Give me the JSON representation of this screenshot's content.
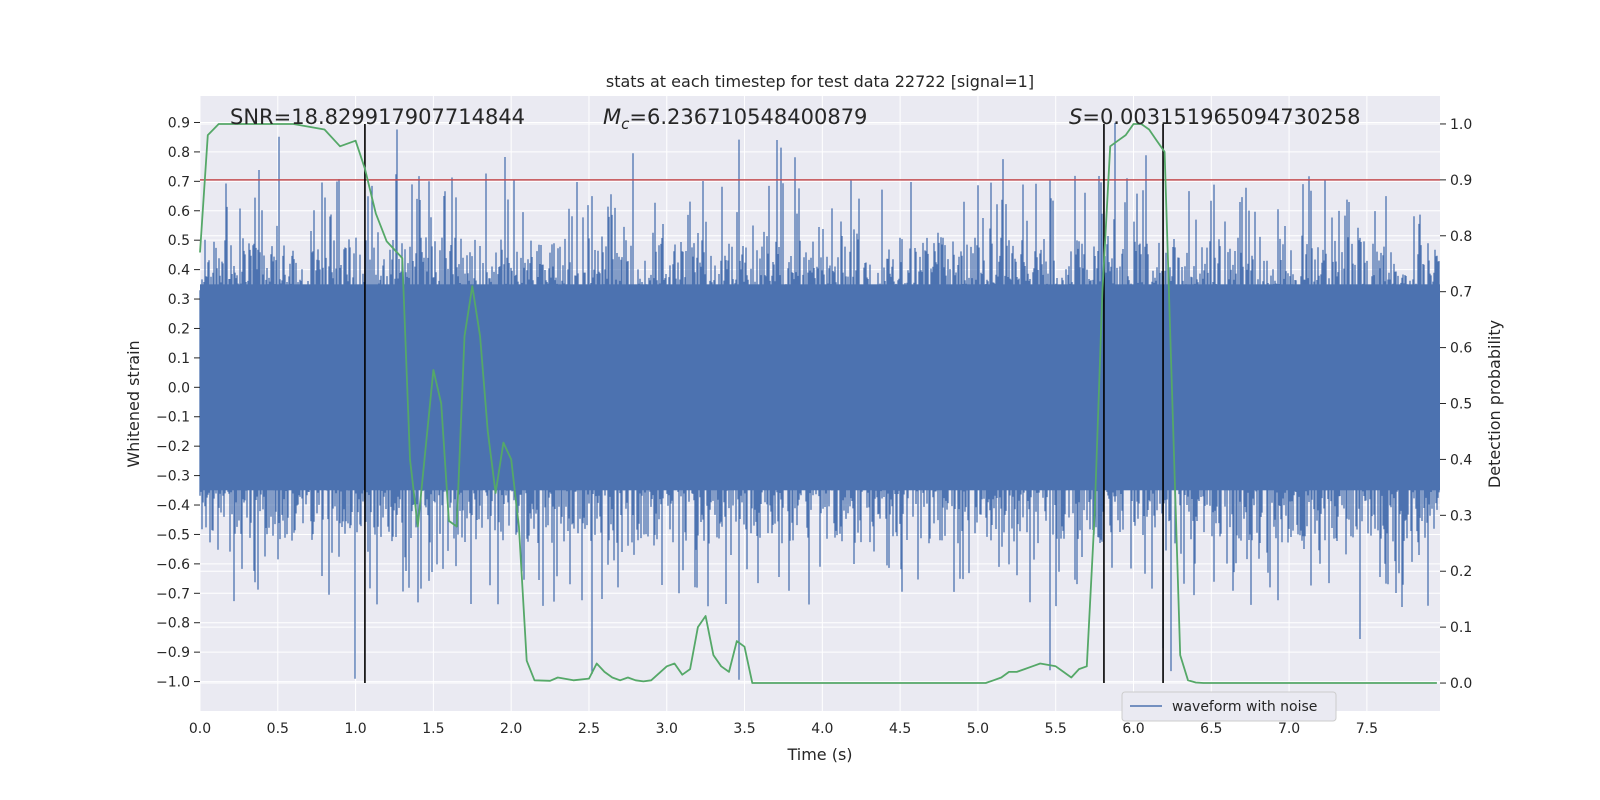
{
  "chart_data": {
    "type": "line",
    "title": "stats at each timestep for test data 22722 [signal=1]",
    "xlabel": "Time (s)",
    "ylabel": "Whitened strain",
    "ylabel_right": "Detection probability",
    "xlim": [
      0,
      7.97
    ],
    "ylim": [
      -1.1,
      0.99
    ],
    "ylim_right": [
      -0.05,
      1.05
    ],
    "x_ticks": [
      "0.0",
      "0.5",
      "1.0",
      "1.5",
      "2.0",
      "2.5",
      "3.0",
      "3.5",
      "4.0",
      "4.5",
      "5.0",
      "5.5",
      "6.0",
      "6.5",
      "7.0",
      "7.5"
    ],
    "y_ticks": [
      "0.9",
      "0.8",
      "0.7",
      "0.6",
      "0.5",
      "0.4",
      "0.3",
      "0.2",
      "0.1",
      "0.0",
      "−0.1",
      "−0.2",
      "−0.3",
      "−0.4",
      "−0.5",
      "−0.6",
      "−0.7",
      "−0.8",
      "−0.9",
      "−1.0"
    ],
    "y_ticks_right": [
      "1.0",
      "0.9",
      "0.8",
      "0.7",
      "0.6",
      "0.5",
      "0.4",
      "0.3",
      "0.2",
      "0.1",
      "0.0"
    ],
    "annotations": {
      "snr": "SNR=18.829917907714844",
      "mc_symbol": "M",
      "mc_sub": "c",
      "mc_value": "=6.236710548400879",
      "s_symbol": "S",
      "s_value": "=0.003151965094730258"
    },
    "legend": {
      "label": "waveform with noise",
      "location": "lower-right"
    },
    "colors": {
      "waveform": "#4c72b0",
      "probability": "#55a868",
      "threshold": "#c44e52",
      "markers": "#000000",
      "plot_bg": "#eaeaf2",
      "grid": "#ffffff"
    },
    "threshold_probability": 0.9,
    "vertical_markers_s": [
      1.06,
      5.81,
      6.19
    ],
    "waveform_envelope": {
      "core_halfwidth": 0.35,
      "typical_peak": 0.5,
      "max_peak": 0.9,
      "min_trough": -1.0
    },
    "series": [
      {
        "name": "detection probability",
        "axis": "right",
        "x": [
          0.0,
          0.05,
          0.12,
          0.2,
          0.4,
          0.6,
          0.8,
          0.9,
          1.0,
          1.06,
          1.13,
          1.2,
          1.3,
          1.35,
          1.4,
          1.45,
          1.5,
          1.55,
          1.6,
          1.65,
          1.7,
          1.75,
          1.8,
          1.85,
          1.9,
          1.95,
          2.0,
          2.05,
          2.1,
          2.15,
          2.25,
          2.3,
          2.4,
          2.5,
          2.55,
          2.6,
          2.65,
          2.7,
          2.75,
          2.8,
          2.85,
          2.9,
          3.0,
          3.05,
          3.1,
          3.15,
          3.2,
          3.25,
          3.3,
          3.35,
          3.4,
          3.45,
          3.5,
          3.55,
          3.6,
          3.65,
          3.7,
          3.75,
          3.8,
          3.85,
          3.9,
          4.0,
          4.1,
          4.2,
          4.4,
          4.5,
          4.6,
          4.7,
          4.8,
          4.9,
          5.0,
          5.05,
          5.1,
          5.15,
          5.2,
          5.25,
          5.3,
          5.35,
          5.4,
          5.5,
          5.55,
          5.6,
          5.65,
          5.7,
          5.75,
          5.8,
          5.85,
          5.9,
          5.95,
          6.0,
          6.05,
          6.1,
          6.15,
          6.2,
          6.25,
          6.3,
          6.35,
          6.4,
          6.45,
          6.5,
          6.7,
          6.9,
          7.0,
          7.2,
          7.4,
          7.6,
          7.8,
          7.95
        ],
        "y": [
          0.77,
          0.98,
          1.0,
          1.0,
          1.0,
          1.0,
          0.99,
          0.96,
          0.97,
          0.92,
          0.84,
          0.79,
          0.76,
          0.4,
          0.28,
          0.42,
          0.56,
          0.5,
          0.29,
          0.28,
          0.62,
          0.71,
          0.62,
          0.45,
          0.34,
          0.43,
          0.4,
          0.28,
          0.04,
          0.005,
          0.004,
          0.01,
          0.005,
          0.008,
          0.035,
          0.02,
          0.01,
          0.005,
          0.01,
          0.005,
          0.003,
          0.005,
          0.03,
          0.035,
          0.015,
          0.025,
          0.1,
          0.12,
          0.05,
          0.03,
          0.02,
          0.075,
          0.065,
          0.0,
          0.0,
          0.0,
          0.0,
          0.0,
          0.0,
          0.0,
          0.0,
          0.0,
          0.0,
          0.0,
          0.0,
          0.0,
          0.0,
          0.0,
          0.0,
          0.0,
          0.0,
          0.0,
          0.005,
          0.01,
          0.02,
          0.02,
          0.025,
          0.03,
          0.035,
          0.03,
          0.02,
          0.01,
          0.025,
          0.03,
          0.3,
          0.7,
          0.96,
          0.97,
          0.98,
          1.0,
          1.0,
          0.99,
          0.97,
          0.95,
          0.5,
          0.05,
          0.005,
          0.001,
          0.0,
          0.0,
          0.0,
          0.0,
          0.0,
          0.0,
          0.0,
          0.0,
          0.0,
          0.0
        ]
      }
    ]
  }
}
